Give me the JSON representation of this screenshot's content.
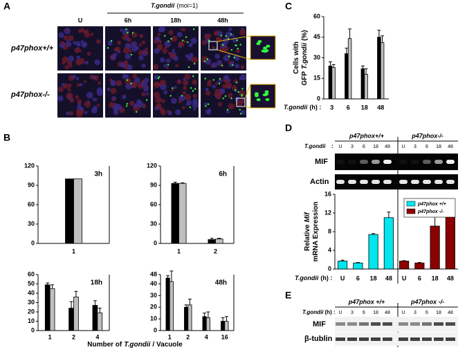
{
  "panel_labels": [
    "A",
    "B",
    "C",
    "D",
    "E"
  ],
  "panel_a": {
    "header_italic": "T.gondii",
    "header": "(moi=1)",
    "columns": [
      "U",
      "6h",
      "18h",
      "48h"
    ],
    "rows": [
      "p47phox+/+",
      "p47phox-/-"
    ]
  },
  "panel_b": {
    "xlabel_pre": "Number of",
    "xlabel_italic": "T.gondii",
    "xlabel_post": "/ Vacuole"
  },
  "panel_d": {
    "groups": [
      "p47phox+/+",
      "p47phox-/-"
    ],
    "row_label": "T.gondii",
    "colon": ":",
    "lanes": [
      "U",
      "3",
      "6",
      "18",
      "48"
    ],
    "blots": [
      "MIF",
      "Actin"
    ]
  },
  "panel_e": {
    "groups": [
      "p47phox +/+",
      "p47phox -/-"
    ],
    "row_label_italic": "T.gondii",
    "row_label": "(h) :",
    "lanes": [
      "U",
      "3",
      "6",
      "18",
      "48"
    ],
    "blots": [
      "MIF",
      "β-tublin"
    ]
  },
  "chart_data": [
    {
      "type": "bar",
      "ylabel": "Cells with",
      "ylabel2": "GFP",
      "ylabel_italic": "T.gondii",
      "ylabel_end": "(%)",
      "xlabel_italic": "T.gondii",
      "xlabel": "(h) :",
      "categories": [
        "3",
        "6",
        "18",
        "48"
      ],
      "ylim": [
        0,
        60
      ],
      "yticks": [
        0,
        15,
        30,
        45,
        60
      ],
      "series": [
        {
          "color": "#000000",
          "values": [
            24,
            33,
            22,
            45
          ],
          "errors": [
            3,
            4,
            2,
            5
          ]
        },
        {
          "color": "#bfbfbf",
          "values": [
            23,
            44,
            18,
            41
          ],
          "errors": [
            2,
            7,
            4,
            5
          ]
        }
      ]
    },
    {
      "type": "bar",
      "title": "3h",
      "categories": [
        "1"
      ],
      "ylim": [
        0,
        120
      ],
      "yticks": [
        0,
        30,
        60,
        90,
        120
      ],
      "series": [
        {
          "color": "#000000",
          "values": [
            100
          ]
        },
        {
          "color": "#bfbfbf",
          "values": [
            100
          ]
        }
      ]
    },
    {
      "type": "bar",
      "title": "6h",
      "categories": [
        "1",
        "2"
      ],
      "ylim": [
        0,
        120
      ],
      "yticks": [
        0,
        30,
        60,
        90,
        120
      ],
      "series": [
        {
          "color": "#000000",
          "values": [
            93,
            6
          ],
          "errors": [
            2,
            2
          ]
        },
        {
          "color": "#bfbfbf",
          "values": [
            93,
            7
          ],
          "errors": [
            1,
            1
          ]
        }
      ]
    },
    {
      "type": "bar",
      "title": "18h",
      "categories": [
        "1",
        "2",
        "4"
      ],
      "ylim": [
        0,
        60
      ],
      "yticks": [
        0,
        10,
        20,
        30,
        40,
        50,
        60
      ],
      "series": [
        {
          "color": "#000000",
          "values": [
            49,
            24,
            27
          ],
          "errors": [
            2,
            7,
            5
          ]
        },
        {
          "color": "#bfbfbf",
          "values": [
            45,
            36,
            19
          ],
          "errors": [
            4,
            6,
            5
          ]
        }
      ]
    },
    {
      "type": "bar",
      "title": "48h",
      "categories": [
        "1",
        "2",
        "4",
        "16"
      ],
      "ylim": [
        0,
        48
      ],
      "yticks": [
        0,
        10,
        20,
        30,
        40,
        48
      ],
      "series": [
        {
          "color": "#000000",
          "values": [
            45,
            20,
            12,
            8
          ],
          "errors": [
            2,
            2,
            3,
            3
          ]
        },
        {
          "color": "#bfbfbf",
          "values": [
            42,
            22,
            11,
            8
          ],
          "errors": [
            9,
            5,
            5,
            4
          ]
        }
      ]
    },
    {
      "type": "bar",
      "ylabel": "Relative",
      "ylabel_italic": "Mif",
      "ylabel2": "mRNA Expression",
      "xlabel_italic": "T.gondii",
      "xlabel": "(h) :",
      "categories": [
        "U",
        "6",
        "18",
        "48"
      ],
      "ylim": [
        0,
        16
      ],
      "yticks": [
        0,
        4,
        8,
        12,
        16
      ],
      "legend": "upper right",
      "series": [
        {
          "name": "p47phox +/+",
          "color": "#00e5ee",
          "values": [
            1.7,
            1.3,
            7.4,
            11
          ],
          "errors": [
            0.2,
            0.1,
            0.2,
            1.2
          ]
        },
        {
          "name": "p47phox -/-",
          "color": "#8b0000",
          "values": [
            1.7,
            1.3,
            9.2,
            11.4
          ],
          "errors": [
            0.1,
            0.1,
            3,
            0.1
          ]
        }
      ]
    }
  ]
}
